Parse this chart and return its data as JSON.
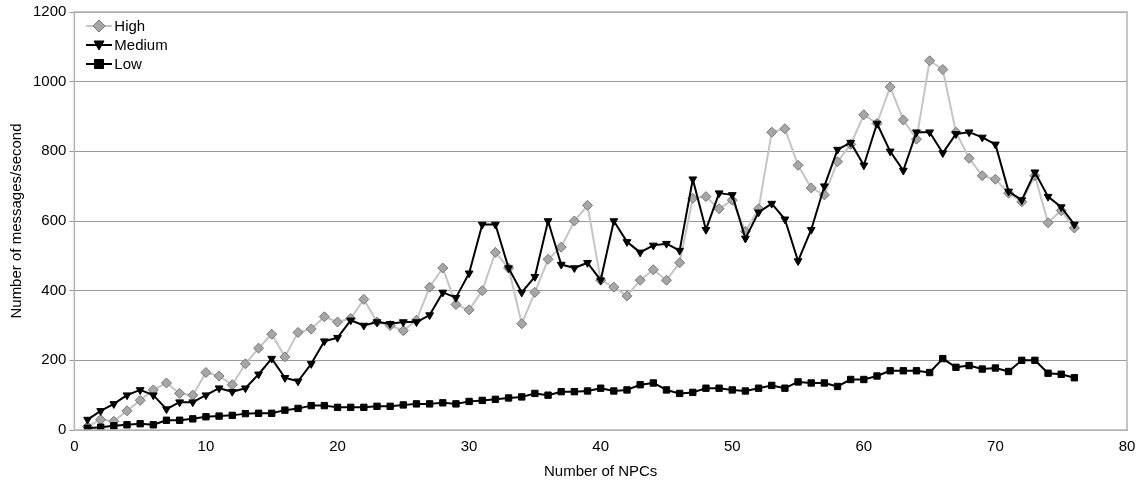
{
  "chart_data": {
    "type": "line",
    "xlabel": "Number of NPCs",
    "ylabel": "Number of messages/second",
    "x": [
      1,
      2,
      3,
      4,
      5,
      6,
      7,
      8,
      9,
      10,
      11,
      12,
      13,
      14,
      15,
      16,
      17,
      18,
      19,
      20,
      21,
      22,
      23,
      24,
      25,
      26,
      27,
      28,
      29,
      30,
      31,
      32,
      33,
      34,
      35,
      36,
      37,
      38,
      39,
      40,
      41,
      42,
      43,
      44,
      45,
      46,
      47,
      48,
      49,
      50,
      51,
      52,
      53,
      54,
      55,
      56,
      57,
      58,
      59,
      60,
      61,
      62,
      63,
      64,
      65,
      66,
      67,
      68,
      69,
      70,
      71,
      72,
      73,
      74,
      75,
      76
    ],
    "series": [
      {
        "name": "High",
        "color": "#a6a6a6",
        "marker": "diamond",
        "values": [
          10,
          30,
          25,
          55,
          85,
          115,
          135,
          105,
          100,
          165,
          155,
          130,
          190,
          235,
          275,
          210,
          280,
          290,
          325,
          310,
          320,
          375,
          310,
          300,
          285,
          315,
          410,
          465,
          360,
          345,
          400,
          510,
          465,
          305,
          395,
          490,
          525,
          600,
          645,
          430,
          410,
          385,
          430,
          460,
          430,
          480,
          665,
          670,
          635,
          660,
          570,
          635,
          855,
          865,
          760,
          695,
          675,
          770,
          820,
          905,
          880,
          985,
          890,
          835,
          1060,
          1035,
          855,
          780,
          730,
          720,
          680,
          655,
          730,
          595,
          630,
          580
        ]
      },
      {
        "name": "Medium",
        "color": "#000000",
        "marker": "triangle",
        "values": [
          30,
          55,
          75,
          100,
          115,
          100,
          60,
          80,
          80,
          100,
          120,
          110,
          120,
          160,
          205,
          150,
          140,
          190,
          255,
          265,
          315,
          300,
          310,
          305,
          310,
          310,
          330,
          395,
          380,
          450,
          590,
          590,
          465,
          395,
          440,
          600,
          475,
          465,
          480,
          430,
          600,
          540,
          510,
          530,
          535,
          515,
          720,
          575,
          680,
          675,
          550,
          625,
          650,
          605,
          485,
          575,
          700,
          805,
          825,
          760,
          880,
          800,
          745,
          855,
          855,
          795,
          850,
          855,
          840,
          820,
          685,
          660,
          740,
          670,
          640,
          590
        ]
      },
      {
        "name": "Low",
        "color": "#000000",
        "marker": "square",
        "values": [
          5,
          8,
          12,
          15,
          18,
          15,
          28,
          28,
          32,
          38,
          40,
          42,
          47,
          48,
          48,
          57,
          62,
          70,
          70,
          65,
          65,
          65,
          68,
          68,
          72,
          75,
          75,
          78,
          75,
          82,
          85,
          88,
          92,
          95,
          105,
          100,
          110,
          110,
          112,
          120,
          112,
          115,
          130,
          135,
          115,
          105,
          108,
          120,
          120,
          115,
          112,
          120,
          128,
          120,
          138,
          135,
          135,
          125,
          145,
          145,
          155,
          170,
          170,
          170,
          165,
          205,
          180,
          185,
          175,
          178,
          168,
          200,
          200,
          163,
          160,
          150
        ]
      }
    ],
    "xlim": [
      0,
      80
    ],
    "xticks": [
      0,
      10,
      20,
      30,
      40,
      50,
      60,
      70,
      80
    ],
    "ylim": [
      0,
      1200
    ],
    "yticks": [
      0,
      200,
      400,
      600,
      800,
      1000,
      1200
    ],
    "grid": "y",
    "legend": "top left",
    "line_style": "solid"
  }
}
